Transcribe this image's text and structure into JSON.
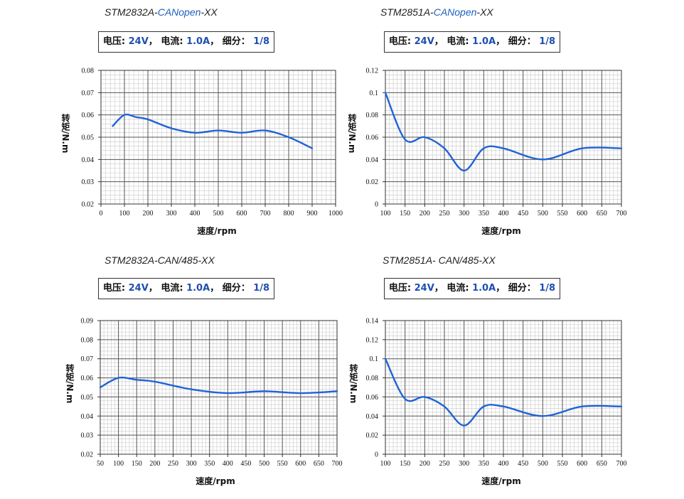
{
  "spec_labels": {
    "voltage_label": "电压:",
    "voltage": "24V",
    "current_label": "电流:",
    "current": "1.0A",
    "micro_label": "细分：",
    "micro": "1/8",
    "sep": "，"
  },
  "colors": {
    "line": "#1f63d6",
    "grid": "#555555",
    "minor_grid": "#c8c8c8",
    "title_accent": "#1f5fbf"
  },
  "chart_data": [
    {
      "type": "line",
      "title_prefix": "STM2832A-",
      "title_accent": "CANopen",
      "title_suffix": "-XX",
      "xlabel": "速度/rpm",
      "ylabel": "转矩/N.m",
      "xlim": [
        0,
        1000
      ],
      "ylim": [
        0.02,
        0.08
      ],
      "xticks": [
        0,
        100,
        200,
        300,
        400,
        500,
        600,
        700,
        800,
        900,
        1000
      ],
      "yticks": [
        0.02,
        0.03,
        0.04,
        0.05,
        0.06,
        0.07,
        0.08
      ],
      "ytick_labels": [
        "0.02",
        "0.03",
        "0.04",
        "0.05",
        "0.06",
        "0.07",
        "0.08"
      ],
      "x": [
        50,
        100,
        150,
        200,
        300,
        400,
        500,
        600,
        700,
        800,
        900
      ],
      "y": [
        0.055,
        0.06,
        0.059,
        0.058,
        0.054,
        0.052,
        0.053,
        0.052,
        0.053,
        0.05,
        0.045
      ]
    },
    {
      "type": "line",
      "title_prefix": "STM2851A-",
      "title_accent": "CANopen",
      "title_suffix": "-XX",
      "xlabel": "速度/rpm",
      "ylabel": "转矩/N.m",
      "xlim": [
        100,
        700
      ],
      "ylim": [
        0,
        0.12
      ],
      "xticks": [
        100,
        150,
        200,
        250,
        300,
        350,
        400,
        450,
        500,
        550,
        600,
        650,
        700
      ],
      "yticks": [
        0,
        0.02,
        0.04,
        0.06,
        0.08,
        0.1,
        0.12
      ],
      "ytick_labels": [
        "0",
        "0.02",
        "0.04",
        "0.06",
        "0.08",
        "0.1",
        "0.12"
      ],
      "x": [
        100,
        150,
        200,
        250,
        300,
        350,
        400,
        500,
        600,
        700
      ],
      "y": [
        0.1,
        0.058,
        0.06,
        0.05,
        0.03,
        0.05,
        0.05,
        0.04,
        0.05,
        0.05
      ]
    },
    {
      "type": "line",
      "title_prefix": "STM2832A-CAN/485-XX",
      "title_accent": "",
      "title_suffix": "",
      "xlabel": "速度/rpm",
      "ylabel": "转矩/N.m",
      "xlim": [
        50,
        700
      ],
      "ylim": [
        0.02,
        0.09
      ],
      "xticks": [
        50,
        100,
        150,
        200,
        250,
        300,
        350,
        400,
        450,
        500,
        550,
        600,
        650,
        700
      ],
      "yticks": [
        0.02,
        0.03,
        0.04,
        0.05,
        0.06,
        0.07,
        0.08,
        0.09
      ],
      "ytick_labels": [
        "0.02",
        "0.03",
        "0.04",
        "0.05",
        "0.06",
        "0.07",
        "0.08",
        "0.09"
      ],
      "x": [
        50,
        100,
        150,
        200,
        300,
        400,
        500,
        600,
        700
      ],
      "y": [
        0.055,
        0.06,
        0.059,
        0.058,
        0.054,
        0.052,
        0.053,
        0.052,
        0.053
      ]
    },
    {
      "type": "line",
      "title_prefix": "STM2851A- CAN/485-XX",
      "title_accent": "",
      "title_suffix": "",
      "xlabel": "速度/rpm",
      "ylabel": "转矩/N.m",
      "xlim": [
        100,
        700
      ],
      "ylim": [
        0,
        0.14
      ],
      "xticks": [
        100,
        150,
        200,
        250,
        300,
        350,
        400,
        450,
        500,
        550,
        600,
        650,
        700
      ],
      "yticks": [
        0,
        0.02,
        0.04,
        0.06,
        0.08,
        0.1,
        0.12,
        0.14
      ],
      "ytick_labels": [
        "0",
        "0.02",
        "0.04",
        "0.06",
        "0.08",
        "0.1",
        "0.12",
        "0.14"
      ],
      "x": [
        100,
        150,
        200,
        250,
        300,
        350,
        400,
        500,
        600,
        700
      ],
      "y": [
        0.1,
        0.058,
        0.06,
        0.05,
        0.03,
        0.05,
        0.05,
        0.04,
        0.05,
        0.05
      ]
    }
  ]
}
